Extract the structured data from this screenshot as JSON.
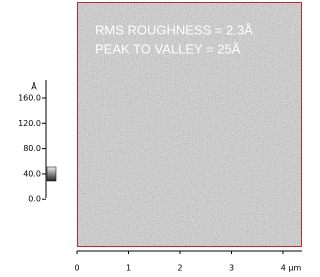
{
  "image": {
    "annotations": [
      "RMS ROUGHNESS = 2.3Å",
      "PEAK TO VALLEY = 25Å"
    ]
  },
  "x_axis": {
    "ticks": [
      "0",
      "1",
      "2",
      "3",
      "4 µm"
    ]
  },
  "colorbar": {
    "unit": "Å",
    "ticks": [
      "160.0",
      "120.0",
      "80.0",
      "40.0",
      "0.0"
    ]
  }
}
